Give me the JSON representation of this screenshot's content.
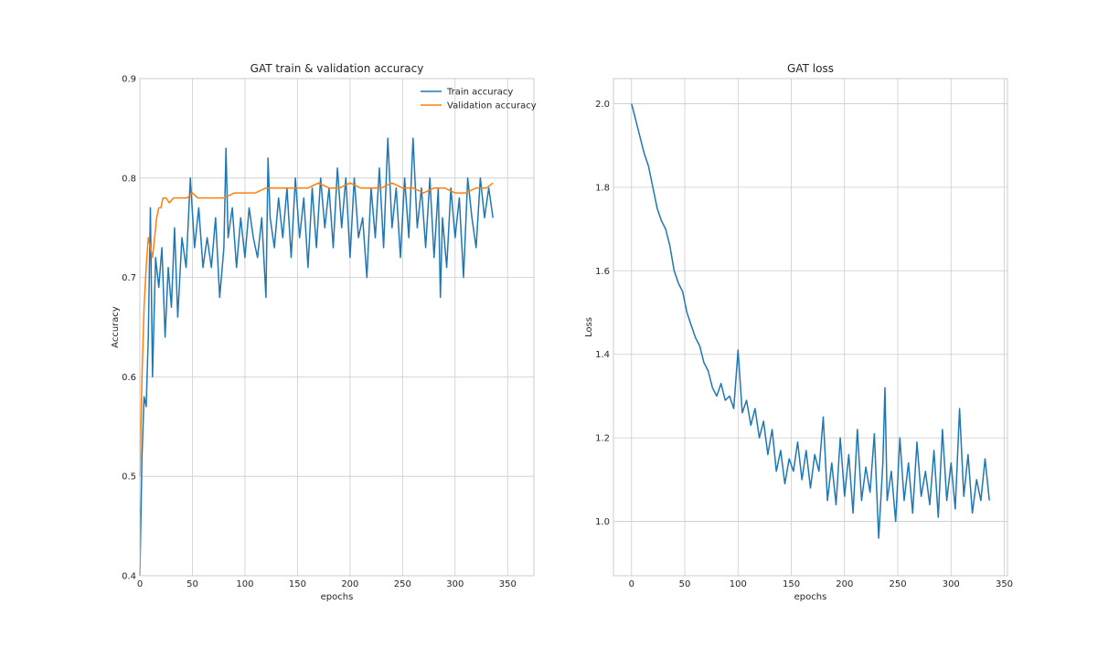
{
  "colors": {
    "train": "#1f77b4",
    "validation": "#ff7f0e",
    "grid": "#cccccc",
    "frame": "#cccccc",
    "text": "#262626"
  },
  "chart_data": [
    {
      "type": "line",
      "title": "GAT train & validation accuracy",
      "xlabel": "epochs",
      "ylabel": "Accuracy",
      "xlim": [
        0,
        375
      ],
      "ylim": [
        0.4,
        0.9
      ],
      "xticks": [
        0,
        50,
        100,
        150,
        200,
        250,
        300,
        350
      ],
      "yticks": [
        0.4,
        0.5,
        0.6,
        0.7,
        0.8,
        0.9
      ],
      "xtick_labels": [
        "0",
        "50",
        "100",
        "150",
        "200",
        "250",
        "300",
        "350"
      ],
      "ytick_labels": [
        "0.4",
        "0.5",
        "0.6",
        "0.7",
        "0.8",
        "0.9"
      ],
      "grid": true,
      "legend": "upper right",
      "series": [
        {
          "name": "Train accuracy",
          "color": "#1f77b4",
          "x": [
            0,
            2,
            4,
            6,
            8,
            10,
            12,
            15,
            18,
            21,
            24,
            27,
            30,
            33,
            36,
            40,
            44,
            48,
            52,
            56,
            60,
            64,
            68,
            72,
            76,
            80,
            82,
            84,
            88,
            92,
            96,
            100,
            104,
            108,
            112,
            116,
            120,
            122,
            124,
            128,
            132,
            136,
            140,
            144,
            148,
            152,
            156,
            160,
            164,
            168,
            172,
            176,
            180,
            184,
            188,
            192,
            196,
            200,
            204,
            208,
            212,
            216,
            220,
            224,
            228,
            232,
            236,
            240,
            244,
            248,
            252,
            256,
            260,
            264,
            268,
            272,
            276,
            280,
            284,
            286,
            288,
            292,
            296,
            300,
            304,
            308,
            312,
            316,
            320,
            324,
            328,
            332,
            336
          ],
          "y": [
            0.4,
            0.52,
            0.58,
            0.57,
            0.64,
            0.77,
            0.6,
            0.72,
            0.69,
            0.73,
            0.64,
            0.71,
            0.67,
            0.75,
            0.66,
            0.74,
            0.71,
            0.8,
            0.73,
            0.77,
            0.71,
            0.74,
            0.71,
            0.76,
            0.68,
            0.73,
            0.83,
            0.74,
            0.77,
            0.71,
            0.76,
            0.72,
            0.77,
            0.74,
            0.72,
            0.76,
            0.68,
            0.82,
            0.76,
            0.73,
            0.78,
            0.74,
            0.79,
            0.72,
            0.8,
            0.74,
            0.78,
            0.71,
            0.79,
            0.73,
            0.8,
            0.75,
            0.79,
            0.73,
            0.81,
            0.75,
            0.8,
            0.72,
            0.8,
            0.74,
            0.76,
            0.7,
            0.79,
            0.74,
            0.81,
            0.73,
            0.84,
            0.75,
            0.79,
            0.72,
            0.8,
            0.74,
            0.84,
            0.75,
            0.79,
            0.73,
            0.8,
            0.72,
            0.79,
            0.68,
            0.76,
            0.71,
            0.79,
            0.74,
            0.78,
            0.7,
            0.8,
            0.76,
            0.73,
            0.8,
            0.76,
            0.79,
            0.76
          ]
        },
        {
          "name": "Validation accuracy",
          "color": "#ff7f0e",
          "x": [
            0,
            2,
            4,
            6,
            8,
            10,
            12,
            14,
            16,
            18,
            20,
            22,
            25,
            28,
            32,
            36,
            40,
            45,
            50,
            55,
            60,
            70,
            80,
            90,
            100,
            110,
            120,
            130,
            140,
            150,
            160,
            170,
            180,
            190,
            200,
            210,
            220,
            230,
            240,
            250,
            260,
            270,
            280,
            290,
            300,
            310,
            320,
            330,
            336
          ],
          "y": [
            0.5,
            0.6,
            0.67,
            0.71,
            0.74,
            0.73,
            0.72,
            0.74,
            0.76,
            0.77,
            0.77,
            0.78,
            0.78,
            0.775,
            0.78,
            0.78,
            0.78,
            0.78,
            0.785,
            0.78,
            0.78,
            0.78,
            0.78,
            0.785,
            0.785,
            0.785,
            0.79,
            0.79,
            0.79,
            0.79,
            0.79,
            0.795,
            0.79,
            0.79,
            0.795,
            0.79,
            0.79,
            0.79,
            0.795,
            0.79,
            0.79,
            0.785,
            0.79,
            0.79,
            0.785,
            0.785,
            0.79,
            0.79,
            0.795
          ]
        }
      ]
    },
    {
      "type": "line",
      "title": "GAT loss",
      "xlabel": "epochs",
      "ylabel": "Loss",
      "xlim": [
        -17,
        353
      ],
      "ylim": [
        0.87,
        2.06
      ],
      "xticks": [
        0,
        50,
        100,
        150,
        200,
        250,
        300,
        350
      ],
      "yticks": [
        1.0,
        1.2,
        1.4,
        1.6,
        1.8,
        2.0
      ],
      "xtick_labels": [
        "0",
        "50",
        "100",
        "150",
        "200",
        "250",
        "300",
        "350"
      ],
      "ytick_labels": [
        "1.0",
        "1.2",
        "1.4",
        "1.6",
        "1.8",
        "2.0"
      ],
      "grid": true,
      "series": [
        {
          "name": "",
          "color": "#1f77b4",
          "x": [
            0,
            4,
            8,
            12,
            16,
            20,
            24,
            28,
            32,
            36,
            40,
            44,
            48,
            52,
            56,
            60,
            64,
            68,
            72,
            76,
            80,
            84,
            88,
            92,
            96,
            100,
            104,
            108,
            112,
            116,
            120,
            124,
            128,
            132,
            136,
            140,
            144,
            148,
            152,
            156,
            160,
            164,
            168,
            172,
            176,
            180,
            184,
            188,
            192,
            196,
            200,
            204,
            208,
            212,
            216,
            220,
            224,
            228,
            232,
            236,
            238,
            240,
            244,
            248,
            252,
            256,
            260,
            264,
            268,
            272,
            276,
            280,
            284,
            288,
            292,
            296,
            300,
            304,
            308,
            312,
            316,
            320,
            324,
            328,
            332,
            336
          ],
          "y": [
            2.0,
            1.96,
            1.92,
            1.88,
            1.85,
            1.8,
            1.75,
            1.72,
            1.7,
            1.66,
            1.6,
            1.57,
            1.55,
            1.5,
            1.47,
            1.44,
            1.42,
            1.38,
            1.36,
            1.32,
            1.3,
            1.33,
            1.29,
            1.3,
            1.27,
            1.41,
            1.26,
            1.29,
            1.23,
            1.27,
            1.2,
            1.24,
            1.16,
            1.22,
            1.12,
            1.17,
            1.09,
            1.15,
            1.12,
            1.19,
            1.1,
            1.17,
            1.08,
            1.16,
            1.12,
            1.25,
            1.05,
            1.14,
            1.04,
            1.2,
            1.06,
            1.16,
            1.02,
            1.22,
            1.05,
            1.13,
            1.07,
            1.21,
            0.96,
            1.14,
            1.32,
            1.05,
            1.12,
            1.0,
            1.2,
            1.05,
            1.14,
            1.02,
            1.19,
            1.06,
            1.12,
            1.04,
            1.17,
            1.01,
            1.22,
            1.05,
            1.14,
            1.03,
            1.27,
            1.06,
            1.16,
            1.02,
            1.1,
            1.05,
            1.15,
            1.05
          ]
        }
      ]
    }
  ]
}
